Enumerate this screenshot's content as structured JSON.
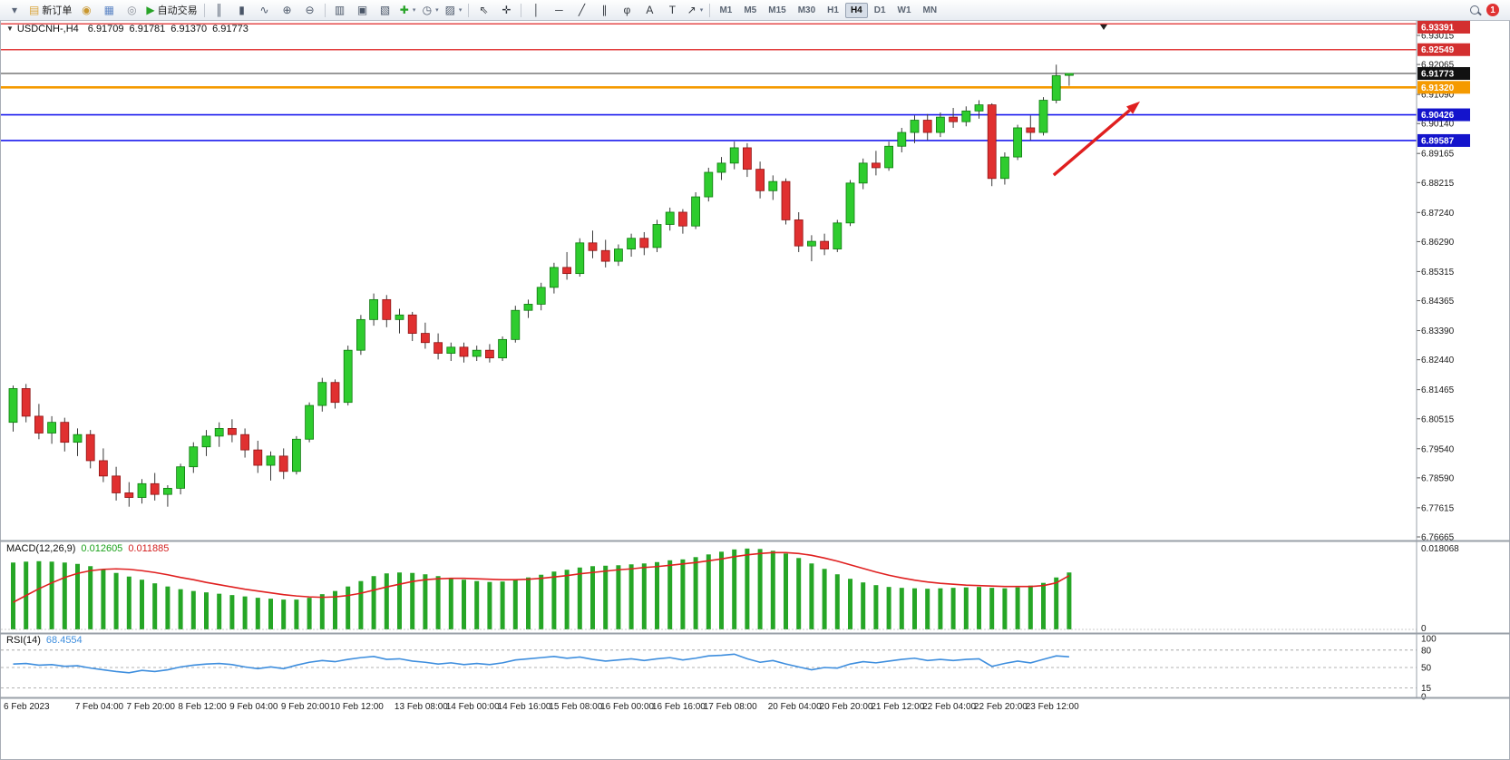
{
  "toolbar": {
    "items": [
      {
        "type": "button",
        "name": "toolbar-expand-icon",
        "glyph": "▾",
        "glyph_color": "#5a6578"
      },
      {
        "type": "button",
        "name": "new-order-button",
        "glyph": "▤",
        "glyph_color": "#d9a43a",
        "label": "新订单"
      },
      {
        "type": "button",
        "name": "market-watch-icon",
        "glyph": "◉",
        "glyph_color": "#c9972f"
      },
      {
        "type": "button",
        "name": "chart-window-icon",
        "glyph": "▦",
        "glyph_color": "#5b84c4"
      },
      {
        "type": "button",
        "name": "support-icon",
        "glyph": "◎",
        "glyph_color": "#8a8f98"
      },
      {
        "type": "button",
        "name": "algo-trading-button",
        "glyph": "▶",
        "glyph_color": "#27a327",
        "label": "自动交易"
      },
      {
        "type": "sep"
      },
      {
        "type": "button",
        "name": "bar-chart-button",
        "glyph": "║",
        "glyph_color": "#4a5668"
      },
      {
        "type": "button",
        "name": "candlestick-chart-button",
        "glyph": "▮",
        "glyph_color": "#4a5668"
      },
      {
        "type": "button",
        "name": "line-chart-button",
        "glyph": "∿",
        "glyph_color": "#4a5668"
      },
      {
        "type": "button",
        "name": "zoom-in-button",
        "glyph": "⊕",
        "glyph_color": "#4a5668"
      },
      {
        "type": "button",
        "name": "zoom-out-button",
        "glyph": "⊖",
        "glyph_color": "#4a5668"
      },
      {
        "type": "sep"
      },
      {
        "type": "button",
        "name": "tile-windows-button",
        "glyph": "▥",
        "glyph_color": "#4a5668"
      },
      {
        "type": "button",
        "name": "arrange-windows-button",
        "glyph": "▣",
        "glyph_color": "#4a5668"
      },
      {
        "type": "button",
        "name": "cascade-windows-button",
        "glyph": "▧",
        "glyph_color": "#4a5668"
      },
      {
        "type": "button",
        "name": "add-indicator-button",
        "glyph": "✚",
        "glyph_color": "#27a327",
        "caret": true
      },
      {
        "type": "button",
        "name": "period-clock-button",
        "glyph": "◷",
        "glyph_color": "#4a5668",
        "caret": true
      },
      {
        "type": "button",
        "name": "template-button",
        "glyph": "▨",
        "glyph_color": "#4a5668",
        "caret": true
      },
      {
        "type": "sep"
      },
      {
        "type": "button",
        "name": "cursor-button",
        "glyph": "⇖",
        "glyph_color": "#33383f"
      },
      {
        "type": "button",
        "name": "crosshair-button",
        "glyph": "✛",
        "glyph_color": "#33383f"
      },
      {
        "type": "sep"
      },
      {
        "type": "button",
        "name": "vertical-line-button",
        "glyph": "│",
        "glyph_color": "#33383f"
      },
      {
        "type": "button",
        "name": "horizontal-line-button",
        "glyph": "─",
        "glyph_color": "#33383f"
      },
      {
        "type": "button",
        "name": "trendline-button",
        "glyph": "╱",
        "glyph_color": "#33383f"
      },
      {
        "type": "button",
        "name": "channel-button",
        "glyph": "∥",
        "glyph_color": "#33383f"
      },
      {
        "type": "button",
        "name": "fibonacci-button",
        "glyph": "φ",
        "glyph_color": "#33383f"
      },
      {
        "type": "button",
        "name": "text-button",
        "glyph": "A",
        "glyph_color": "#33383f"
      },
      {
        "type": "button",
        "name": "label-button",
        "glyph": "T",
        "glyph_color": "#33383f"
      },
      {
        "type": "button",
        "name": "arrows-button",
        "glyph": "↗",
        "glyph_color": "#33383f",
        "caret": true
      },
      {
        "type": "sep"
      },
      {
        "type": "tf",
        "name": "timeframe-m1",
        "label": "M1"
      },
      {
        "type": "tf",
        "name": "timeframe-m5",
        "label": "M5"
      },
      {
        "type": "tf",
        "name": "timeframe-m15",
        "label": "M15"
      },
      {
        "type": "tf",
        "name": "timeframe-m30",
        "label": "M30"
      },
      {
        "type": "tf",
        "name": "timeframe-h1",
        "label": "H1"
      },
      {
        "type": "tf",
        "name": "timeframe-h4",
        "label": "H4",
        "active": true
      },
      {
        "type": "tf",
        "name": "timeframe-d1",
        "label": "D1"
      },
      {
        "type": "tf",
        "name": "timeframe-w1",
        "label": "W1"
      },
      {
        "type": "tf",
        "name": "timeframe-mn",
        "label": "MN"
      },
      {
        "type": "spacer"
      },
      {
        "type": "button",
        "name": "search-button",
        "icon": "magnifier"
      },
      {
        "type": "badge",
        "name": "notification-badge",
        "label": "1"
      }
    ]
  },
  "chart": {
    "collapse_glyph": "▼",
    "symbol_title": "USDCNH-,H4",
    "open": "6.91709",
    "high": "6.91781",
    "low": "6.91370",
    "close": "6.91773"
  },
  "price_axis": {
    "labels": [
      "6.93015",
      "6.92065",
      "6.91090",
      "6.90140",
      "6.89165",
      "6.88215",
      "6.87240",
      "6.86290",
      "6.85315",
      "6.84365",
      "6.83390",
      "6.82440",
      "6.81465",
      "6.80515",
      "6.79540",
      "6.78590",
      "6.77615",
      "6.76665"
    ]
  },
  "hlines": [
    {
      "price": 6.93391,
      "label": "6.93391",
      "line_color": "#e23a3a",
      "badge_color": "#d32f2f",
      "width": 1.4
    },
    {
      "price": 6.92549,
      "label": "6.92549",
      "line_color": "#e23a3a",
      "badge_color": "#d32f2f",
      "width": 1.4
    },
    {
      "price": 6.9132,
      "label": "6.91320",
      "line_color": "#f59a00",
      "badge_color": "#f59a00",
      "width": 2.6
    },
    {
      "price": 6.90426,
      "label": "6.90426",
      "line_color": "#1a1aee",
      "badge_color": "#1414cc",
      "width": 1.6
    },
    {
      "price": 6.89587,
      "label": "6.89587",
      "line_color": "#1a1aee",
      "badge_color": "#1414cc",
      "width": 1.6
    }
  ],
  "current_price": {
    "value": 6.91773,
    "label": "6.91773",
    "badge_color": "#111111",
    "line_color": "#333333"
  },
  "chart_data": {
    "type": "candlestick",
    "symbol": "USDCNH-",
    "timeframe": "H4",
    "price_range": [
      6.76665,
      6.93399
    ],
    "up_color": "#2ecc2e",
    "down_color": "#e03030",
    "candles": [
      [
        6.804,
        6.816,
        6.801,
        6.815
      ],
      [
        6.815,
        6.8165,
        6.804,
        6.806
      ],
      [
        6.806,
        6.81,
        6.7985,
        6.8005
      ],
      [
        6.8005,
        6.806,
        6.797,
        6.804
      ],
      [
        6.804,
        6.8055,
        6.7945,
        6.7975
      ],
      [
        6.7975,
        6.802,
        6.793,
        6.8
      ],
      [
        6.8,
        6.8015,
        6.789,
        6.7915
      ],
      [
        6.7915,
        6.7955,
        6.7845,
        6.7865
      ],
      [
        6.7865,
        6.7895,
        6.7785,
        6.781
      ],
      [
        6.781,
        6.7845,
        6.7765,
        6.7795
      ],
      [
        6.7795,
        6.7855,
        6.7775,
        6.784
      ],
      [
        6.784,
        6.7875,
        6.7785,
        6.7805
      ],
      [
        6.7805,
        6.7835,
        6.7765,
        6.7825
      ],
      [
        6.7825,
        6.7905,
        6.7805,
        6.7895
      ],
      [
        6.7895,
        6.7975,
        6.7875,
        6.796
      ],
      [
        6.796,
        6.8015,
        6.793,
        6.7995
      ],
      [
        6.7995,
        6.804,
        6.796,
        6.802
      ],
      [
        6.802,
        6.805,
        6.7975,
        6.8
      ],
      [
        6.8,
        6.802,
        6.7925,
        6.795
      ],
      [
        6.795,
        6.798,
        6.7875,
        6.79
      ],
      [
        6.79,
        6.7945,
        6.785,
        6.793
      ],
      [
        6.793,
        6.7955,
        6.7855,
        6.788
      ],
      [
        6.788,
        6.7995,
        6.787,
        6.7985
      ],
      [
        6.7985,
        6.8105,
        6.7975,
        6.8095
      ],
      [
        6.8095,
        6.8185,
        6.8075,
        6.817
      ],
      [
        6.817,
        6.818,
        6.8085,
        6.8105
      ],
      [
        6.8105,
        6.829,
        6.8095,
        6.8275
      ],
      [
        6.8275,
        6.839,
        6.826,
        6.8375
      ],
      [
        6.8375,
        6.846,
        6.8355,
        6.844
      ],
      [
        6.844,
        6.8455,
        6.835,
        6.8375
      ],
      [
        6.8375,
        6.841,
        6.833,
        6.839
      ],
      [
        6.839,
        6.84,
        6.8305,
        6.833
      ],
      [
        6.833,
        6.8365,
        6.828,
        6.83
      ],
      [
        6.83,
        6.833,
        6.8245,
        6.8265
      ],
      [
        6.8265,
        6.83,
        6.824,
        6.8285
      ],
      [
        6.8285,
        6.83,
        6.8235,
        6.8255
      ],
      [
        6.8255,
        6.829,
        6.824,
        6.8275
      ],
      [
        6.8275,
        6.8295,
        6.8235,
        6.825
      ],
      [
        6.825,
        6.832,
        6.824,
        6.831
      ],
      [
        6.831,
        6.842,
        6.83,
        6.8405
      ],
      [
        6.8405,
        6.844,
        6.838,
        6.8425
      ],
      [
        6.8425,
        6.8495,
        6.8405,
        6.848
      ],
      [
        6.848,
        6.856,
        6.846,
        6.8545
      ],
      [
        6.8545,
        6.8595,
        6.8505,
        6.8525
      ],
      [
        6.8525,
        6.864,
        6.8515,
        6.8625
      ],
      [
        6.8625,
        6.8665,
        6.8575,
        6.86
      ],
      [
        6.86,
        6.8635,
        6.8545,
        6.8565
      ],
      [
        6.8565,
        6.862,
        6.855,
        6.8605
      ],
      [
        6.8605,
        6.8655,
        6.858,
        6.864
      ],
      [
        6.864,
        6.866,
        6.8585,
        6.861
      ],
      [
        6.861,
        6.87,
        6.8595,
        6.8685
      ],
      [
        6.8685,
        6.874,
        6.8665,
        6.8725
      ],
      [
        6.8725,
        6.8735,
        6.8655,
        6.868
      ],
      [
        6.868,
        6.879,
        6.867,
        6.8775
      ],
      [
        6.8775,
        6.887,
        6.876,
        6.8855
      ],
      [
        6.8855,
        6.8905,
        6.883,
        6.8885
      ],
      [
        6.8885,
        6.8955,
        6.8865,
        6.8935
      ],
      [
        6.8935,
        6.895,
        6.884,
        6.8865
      ],
      [
        6.8865,
        6.889,
        6.877,
        6.8795
      ],
      [
        6.8795,
        6.8845,
        6.8765,
        6.8825
      ],
      [
        6.8825,
        6.8835,
        6.8685,
        6.87
      ],
      [
        6.87,
        6.8725,
        6.8595,
        6.8615
      ],
      [
        6.8615,
        6.865,
        6.8565,
        6.863
      ],
      [
        6.863,
        6.8655,
        6.8585,
        6.8605
      ],
      [
        6.8605,
        6.87,
        6.8595,
        6.869
      ],
      [
        6.869,
        6.883,
        6.868,
        6.882
      ],
      [
        6.882,
        6.89,
        6.88,
        6.8885
      ],
      [
        6.8885,
        6.8925,
        6.8845,
        6.887
      ],
      [
        6.887,
        6.8955,
        6.886,
        6.894
      ],
      [
        6.894,
        6.9,
        6.892,
        6.8985
      ],
      [
        6.8985,
        6.904,
        6.895,
        6.9025
      ],
      [
        6.9025,
        6.9045,
        6.896,
        6.8985
      ],
      [
        6.8985,
        6.905,
        6.897,
        6.9035
      ],
      [
        6.9035,
        6.9065,
        6.9,
        6.902
      ],
      [
        6.902,
        6.907,
        6.9005,
        6.9055
      ],
      [
        6.9055,
        6.909,
        6.903,
        6.9075
      ],
      [
        6.9075,
        6.908,
        6.881,
        6.8835
      ],
      [
        6.8835,
        6.892,
        6.8815,
        6.8905
      ],
      [
        6.8905,
        6.901,
        6.8895,
        6.9
      ],
      [
        6.9,
        6.904,
        6.896,
        6.8985
      ],
      [
        6.8985,
        6.91,
        6.8975,
        6.909
      ],
      [
        6.909,
        6.9206,
        6.908,
        6.917
      ],
      [
        6.9171,
        6.9178,
        6.9137,
        6.91773
      ]
    ],
    "x_labels": [
      {
        "label": "6 Feb 2023",
        "index": 0
      },
      {
        "label": "7 Feb 04:00",
        "index": 7
      },
      {
        "label": "7 Feb 20:00",
        "index": 11
      },
      {
        "label": "8 Feb 12:00",
        "index": 15
      },
      {
        "label": "9 Feb 04:00",
        "index": 19
      },
      {
        "label": "9 Feb 20:00",
        "index": 23
      },
      {
        "label": "10 Feb 12:00",
        "index": 27
      },
      {
        "label": "13 Feb 08:00",
        "index": 32
      },
      {
        "label": "14 Feb 00:00",
        "index": 36
      },
      {
        "label": "14 Feb 16:00",
        "index": 40
      },
      {
        "label": "15 Feb 08:00",
        "index": 44
      },
      {
        "label": "16 Feb 00:00",
        "index": 48
      },
      {
        "label": "16 Feb 16:00",
        "index": 52
      },
      {
        "label": "17 Feb 08:00",
        "index": 56
      },
      {
        "label": "20 Feb 04:00",
        "index": 61
      },
      {
        "label": "20 Feb 20:00",
        "index": 65
      },
      {
        "label": "21 Feb 12:00",
        "index": 69
      },
      {
        "label": "22 Feb 04:00",
        "index": 73
      },
      {
        "label": "22 Feb 20:00",
        "index": 77
      },
      {
        "label": "23 Feb 12:00",
        "index": 81
      }
    ],
    "shift_marker_index": 85
  },
  "macd": {
    "title": "MACD(12,26,9)",
    "main_value": "0.012605",
    "signal_value": "0.011885",
    "axis_max": "0.018068",
    "axis_min": "0",
    "bar_color": "#26a626",
    "signal_color": "#e02020",
    "scale_max": 0.018068,
    "values": [
      0.0148,
      0.015,
      0.0151,
      0.015,
      0.0148,
      0.0145,
      0.014,
      0.0133,
      0.0125,
      0.0117,
      0.011,
      0.0102,
      0.0095,
      0.0089,
      0.0085,
      0.0082,
      0.0079,
      0.0076,
      0.0073,
      0.007,
      0.0068,
      0.0066,
      0.0066,
      0.007,
      0.0078,
      0.0085,
      0.0095,
      0.0107,
      0.0118,
      0.0124,
      0.0126,
      0.0125,
      0.0122,
      0.0118,
      0.0114,
      0.011,
      0.0107,
      0.0105,
      0.0106,
      0.011,
      0.0115,
      0.0121,
      0.0128,
      0.0132,
      0.0137,
      0.014,
      0.0141,
      0.0142,
      0.0144,
      0.0146,
      0.0149,
      0.0153,
      0.0155,
      0.016,
      0.0166,
      0.0172,
      0.0177,
      0.0179,
      0.0178,
      0.0174,
      0.0168,
      0.0158,
      0.0146,
      0.0134,
      0.0122,
      0.0112,
      0.0104,
      0.0098,
      0.0094,
      0.0092,
      0.0091,
      0.009,
      0.0091,
      0.0092,
      0.0093,
      0.0094,
      0.0092,
      0.0091,
      0.0093,
      0.0097,
      0.0103,
      0.0115,
      0.0126
    ],
    "signal": [
      0.006,
      0.0075,
      0.009,
      0.0103,
      0.0115,
      0.0124,
      0.013,
      0.0133,
      0.0134,
      0.0133,
      0.013,
      0.0126,
      0.0121,
      0.0115,
      0.011,
      0.0104,
      0.0099,
      0.0094,
      0.0089,
      0.0085,
      0.0081,
      0.0077,
      0.0074,
      0.0072,
      0.0071,
      0.0072,
      0.0075,
      0.008,
      0.0087,
      0.0094,
      0.01,
      0.0106,
      0.011,
      0.0112,
      0.0113,
      0.0113,
      0.0112,
      0.0111,
      0.011,
      0.011,
      0.0111,
      0.0113,
      0.0116,
      0.0119,
      0.0123,
      0.0126,
      0.0129,
      0.0132,
      0.0134,
      0.0137,
      0.0139,
      0.0142,
      0.0145,
      0.0148,
      0.0152,
      0.0156,
      0.0161,
      0.0165,
      0.0168,
      0.017,
      0.017,
      0.0168,
      0.0164,
      0.0158,
      0.0151,
      0.0143,
      0.0135,
      0.0127,
      0.012,
      0.0114,
      0.0109,
      0.0105,
      0.0102,
      0.01,
      0.0098,
      0.0097,
      0.0096,
      0.0095,
      0.0095,
      0.0095,
      0.0097,
      0.0103,
      0.0119
    ]
  },
  "rsi": {
    "title": "RSI(14)",
    "value": "68.4554",
    "line_color": "#3e8ede",
    "levels": [
      {
        "label": "100",
        "v": 100
      },
      {
        "label": "80",
        "v": 80
      },
      {
        "label": "50",
        "v": 50
      },
      {
        "label": "15",
        "v": 15
      },
      {
        "label": "0",
        "v": 0
      }
    ],
    "dashed_levels": [
      80,
      50,
      15
    ],
    "values": [
      56,
      57,
      54,
      55,
      52,
      53,
      49,
      46,
      43,
      41,
      45,
      43,
      46,
      51,
      54,
      56,
      57,
      55,
      51,
      48,
      51,
      48,
      54,
      59,
      62,
      60,
      64,
      67,
      69,
      64,
      65,
      61,
      59,
      56,
      58,
      55,
      57,
      55,
      58,
      63,
      65,
      67,
      69,
      66,
      68,
      64,
      61,
      63,
      65,
      62,
      65,
      67,
      63,
      66,
      70,
      71,
      73,
      65,
      59,
      62,
      56,
      51,
      46,
      50,
      49,
      56,
      60,
      58,
      61,
      64,
      66,
      62,
      64,
      62,
      64,
      65,
      52,
      57,
      61,
      58,
      64,
      70,
      68.46
    ]
  },
  "annotation": {
    "type": "arrow",
    "color": "#e01f1f",
    "from_index": 80.8,
    "from_price": 6.8846,
    "to_index": 87.5,
    "to_price": 6.9086
  }
}
